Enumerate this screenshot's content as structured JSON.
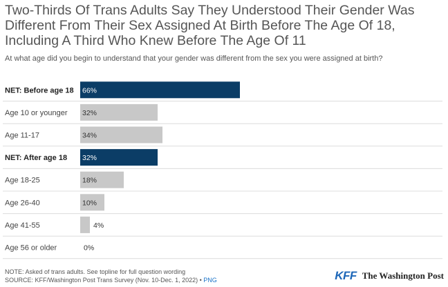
{
  "title": "Two-Thirds Of Trans Adults Say They Understood Their Gender Was Different From Their Sex Assigned At Birth Before The Age Of 18, Including A Third Who Knew Before The Age Of 11",
  "subtitle": "At what age did you begin to understand that your gender was different from the sex you were assigned at birth?",
  "note": "NOTE: Asked of trans adults. See topline for full question wording",
  "source": "SOURCE: KFF/Washington Post Trans Survey (Nov. 10-Dec. 1, 2022) • ",
  "png_link": "PNG",
  "logos": {
    "kff": "KFF",
    "wapo": "The Washington Post"
  },
  "colors": {
    "net": "#0b3d66",
    "detail": "#c8c8c8",
    "grid": "#dcdcdc"
  },
  "chart_data": {
    "type": "bar",
    "orientation": "horizontal",
    "categories": [
      "NET: Before age 18",
      "Age 10 or younger",
      "Age 11-17",
      "NET: After age 18",
      "Age 18-25",
      "Age 26-40",
      "Age 41-55",
      "Age 56 or older"
    ],
    "values": [
      66,
      32,
      34,
      32,
      18,
      10,
      4,
      0
    ],
    "value_labels": [
      "66%",
      "32%",
      "34%",
      "32%",
      "18%",
      "10%",
      "4%",
      "0%"
    ],
    "net_rows": [
      true,
      false,
      false,
      true,
      false,
      false,
      false,
      false
    ],
    "xlim": [
      0,
      100
    ],
    "title": "",
    "xlabel": "",
    "ylabel": ""
  }
}
